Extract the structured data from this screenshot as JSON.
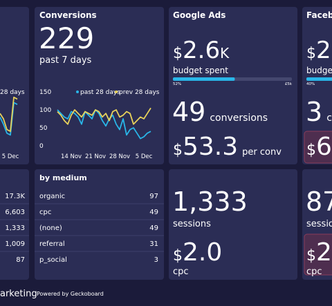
{
  "dashboard_title": "arketing",
  "powered_by": "Powered by Geckoboard",
  "chart_data": [
    {
      "type": "line",
      "categories": [
        null,
        null,
        null,
        "5 Dec",
        null,
        null
      ],
      "series": [
        {
          "color": "#29b6e8",
          "values": [
            80,
            60,
            35,
            30,
            120,
            115
          ]
        },
        {
          "name": "28 days",
          "color": "#e8d25a",
          "values": [
            90,
            75,
            45,
            40,
            135,
            130
          ]
        }
      ],
      "ylim": [
        0,
        150
      ]
    },
    {
      "type": "line",
      "title": "Conversions",
      "big_value": 229,
      "subtitle": "past 7 days",
      "categories": [
        null,
        null,
        null,
        null,
        "14 Nov",
        null,
        null,
        null,
        null,
        null,
        null,
        "21 Nov",
        null,
        null,
        null,
        null,
        null,
        null,
        "28 Nov",
        null,
        null,
        null,
        null,
        null,
        null,
        "5 Dec",
        null,
        null
      ],
      "series": [
        {
          "name": "past 28 days",
          "color": "#29b6e8",
          "values": [
            100,
            90,
            80,
            75,
            95,
            90,
            80,
            60,
            95,
            85,
            75,
            100,
            90,
            70,
            55,
            75,
            85,
            60,
            45,
            75,
            30,
            45,
            50,
            35,
            20,
            25,
            35,
            40
          ]
        },
        {
          "name": "prev 28 days",
          "color": "#e8d25a",
          "values": [
            95,
            85,
            70,
            60,
            85,
            100,
            90,
            80,
            95,
            90,
            85,
            100,
            95,
            80,
            90,
            70,
            95,
            100,
            80,
            85,
            95,
            90,
            60,
            70,
            80,
            75,
            90,
            105
          ]
        }
      ],
      "ylim": [
        0,
        150
      ],
      "yticks": [
        0,
        50,
        100,
        150
      ]
    }
  ],
  "google_ads": {
    "title": "Google Ads",
    "budget": {
      "prefix": "$",
      "value": "2.6",
      "suffix": "K",
      "label": "budget spent"
    },
    "progress": {
      "value": 52,
      "label": "52%",
      "max_label": "£5k"
    },
    "conversions": {
      "value": 49,
      "label": "conversions"
    },
    "cost": {
      "prefix": "$",
      "value": "53.3",
      "label": "per conv"
    }
  },
  "facebook": {
    "title": "Facebo",
    "budget": {
      "prefix": "$",
      "value": "2",
      "label": "budget"
    },
    "progress": {
      "value": 40,
      "label": "40%"
    },
    "conversions": {
      "value": 3,
      "label": "co"
    },
    "cost": {
      "prefix": "$",
      "value": "6"
    }
  },
  "left_table": {
    "rows": [
      "17.3K",
      "6,603",
      "1,333",
      "1,009",
      "87"
    ]
  },
  "by_medium": {
    "title": "by medium",
    "rows": [
      [
        "organic",
        "97"
      ],
      [
        "cpc",
        "49"
      ],
      [
        "(none)",
        "49"
      ],
      [
        "referral",
        "31"
      ],
      [
        "p_social",
        "3"
      ]
    ]
  },
  "sessions": {
    "value": "1,333",
    "label": "sessions",
    "cpc": {
      "prefix": "$",
      "value": "2.0",
      "label": "cpc"
    }
  },
  "right_sessions": {
    "value": "87",
    "label": "sessio",
    "cpc": {
      "prefix": "$",
      "value": "2",
      "label": "cpc"
    }
  }
}
